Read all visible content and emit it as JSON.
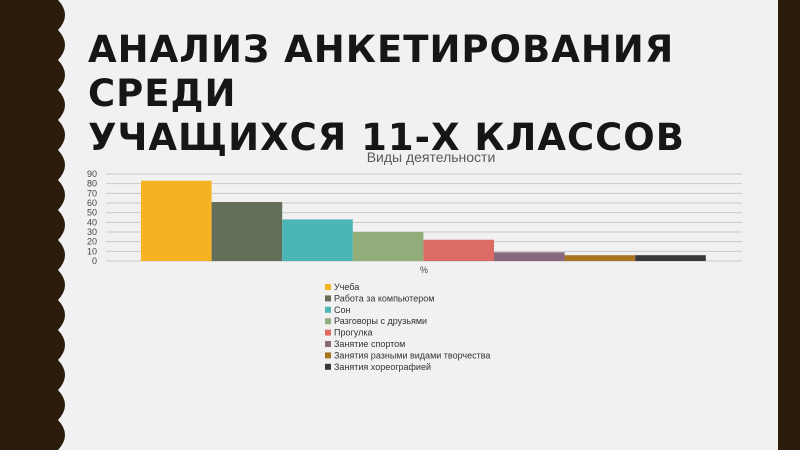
{
  "slide": {
    "title_line1": "Анализ анкетирования среди",
    "title_line2": "учащихся 11-х классов"
  },
  "colors": {
    "background": "#f1f1f1",
    "left_band": "#2b1c0c",
    "right_accent": "#2b1c0c"
  },
  "chart_data": {
    "type": "bar",
    "title": "Виды деятельности",
    "xlabel": "",
    "ylabel": "",
    "categories": [
      "%"
    ],
    "ylim": [
      0,
      90
    ],
    "yticks": [
      0,
      10,
      20,
      30,
      40,
      50,
      60,
      70,
      80,
      90
    ],
    "grid": true,
    "legend_position": "bottom",
    "series": [
      {
        "name": "Учеба",
        "values": [
          83
        ],
        "color": "#f5b324"
      },
      {
        "name": "Работа за компьютером",
        "values": [
          61
        ],
        "color": "#636f58"
      },
      {
        "name": "Сон",
        "values": [
          43
        ],
        "color": "#4cb6b7"
      },
      {
        "name": "Разговоры с друзьями",
        "values": [
          30
        ],
        "color": "#92ad7a"
      },
      {
        "name": "Прогулка",
        "values": [
          22
        ],
        "color": "#db6b63"
      },
      {
        "name": "Занятие спортом",
        "values": [
          9
        ],
        "color": "#86687f"
      },
      {
        "name": "Занятия разными видами творчества",
        "values": [
          6
        ],
        "color": "#a87422"
      },
      {
        "name": "Занятия хореографией",
        "values": [
          6
        ],
        "color": "#383838"
      }
    ]
  }
}
